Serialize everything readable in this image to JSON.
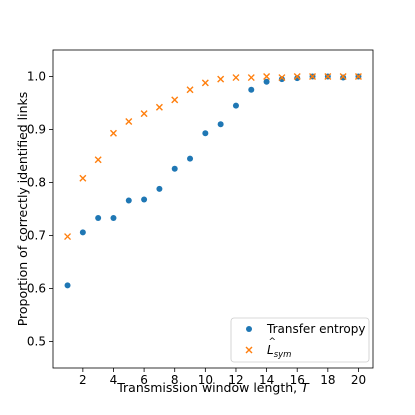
{
  "chart_data": {
    "type": "scatter",
    "title": "",
    "xlabel": "Transmission window length, ",
    "xlabel_var": "T",
    "ylabel": "Proportion of correctly identified links",
    "xlim": [
      0.05,
      20.95
    ],
    "ylim": [
      0.45,
      1.05
    ],
    "xticks": [
      2,
      4,
      6,
      8,
      10,
      12,
      14,
      16,
      18,
      20
    ],
    "yticks": [
      0.5,
      0.6,
      0.7,
      0.8,
      0.9,
      1.0
    ],
    "ytick_labels": [
      "0.5",
      "0.6",
      "0.7",
      "0.8",
      "0.9",
      "1.0"
    ],
    "grid": false,
    "legend_position": "bottom-right",
    "series": [
      {
        "name": "Transfer entropy",
        "marker": "circle",
        "color": "#1f77b4",
        "x": [
          1,
          2,
          3,
          4,
          5,
          6,
          7,
          8,
          9,
          10,
          11,
          12,
          13,
          14,
          15,
          16,
          17,
          18,
          19,
          20
        ],
        "y": [
          0.606,
          0.706,
          0.733,
          0.733,
          0.766,
          0.768,
          0.788,
          0.826,
          0.845,
          0.893,
          0.91,
          0.945,
          0.975,
          0.99,
          0.995,
          0.997,
          1.0,
          1.0,
          0.998,
          1.0
        ]
      },
      {
        "name": "L",
        "name_subscript": "sym",
        "marker": "x",
        "color": "#ff7f0e",
        "x": [
          1,
          2,
          3,
          4,
          5,
          6,
          7,
          8,
          9,
          10,
          11,
          12,
          13,
          14,
          15,
          16,
          17,
          18,
          19,
          20
        ],
        "y": [
          0.698,
          0.808,
          0.843,
          0.893,
          0.915,
          0.93,
          0.942,
          0.956,
          0.975,
          0.988,
          0.995,
          0.998,
          0.998,
          1.0,
          0.998,
          1.0,
          1.0,
          1.0,
          1.0,
          1.0
        ]
      }
    ]
  }
}
